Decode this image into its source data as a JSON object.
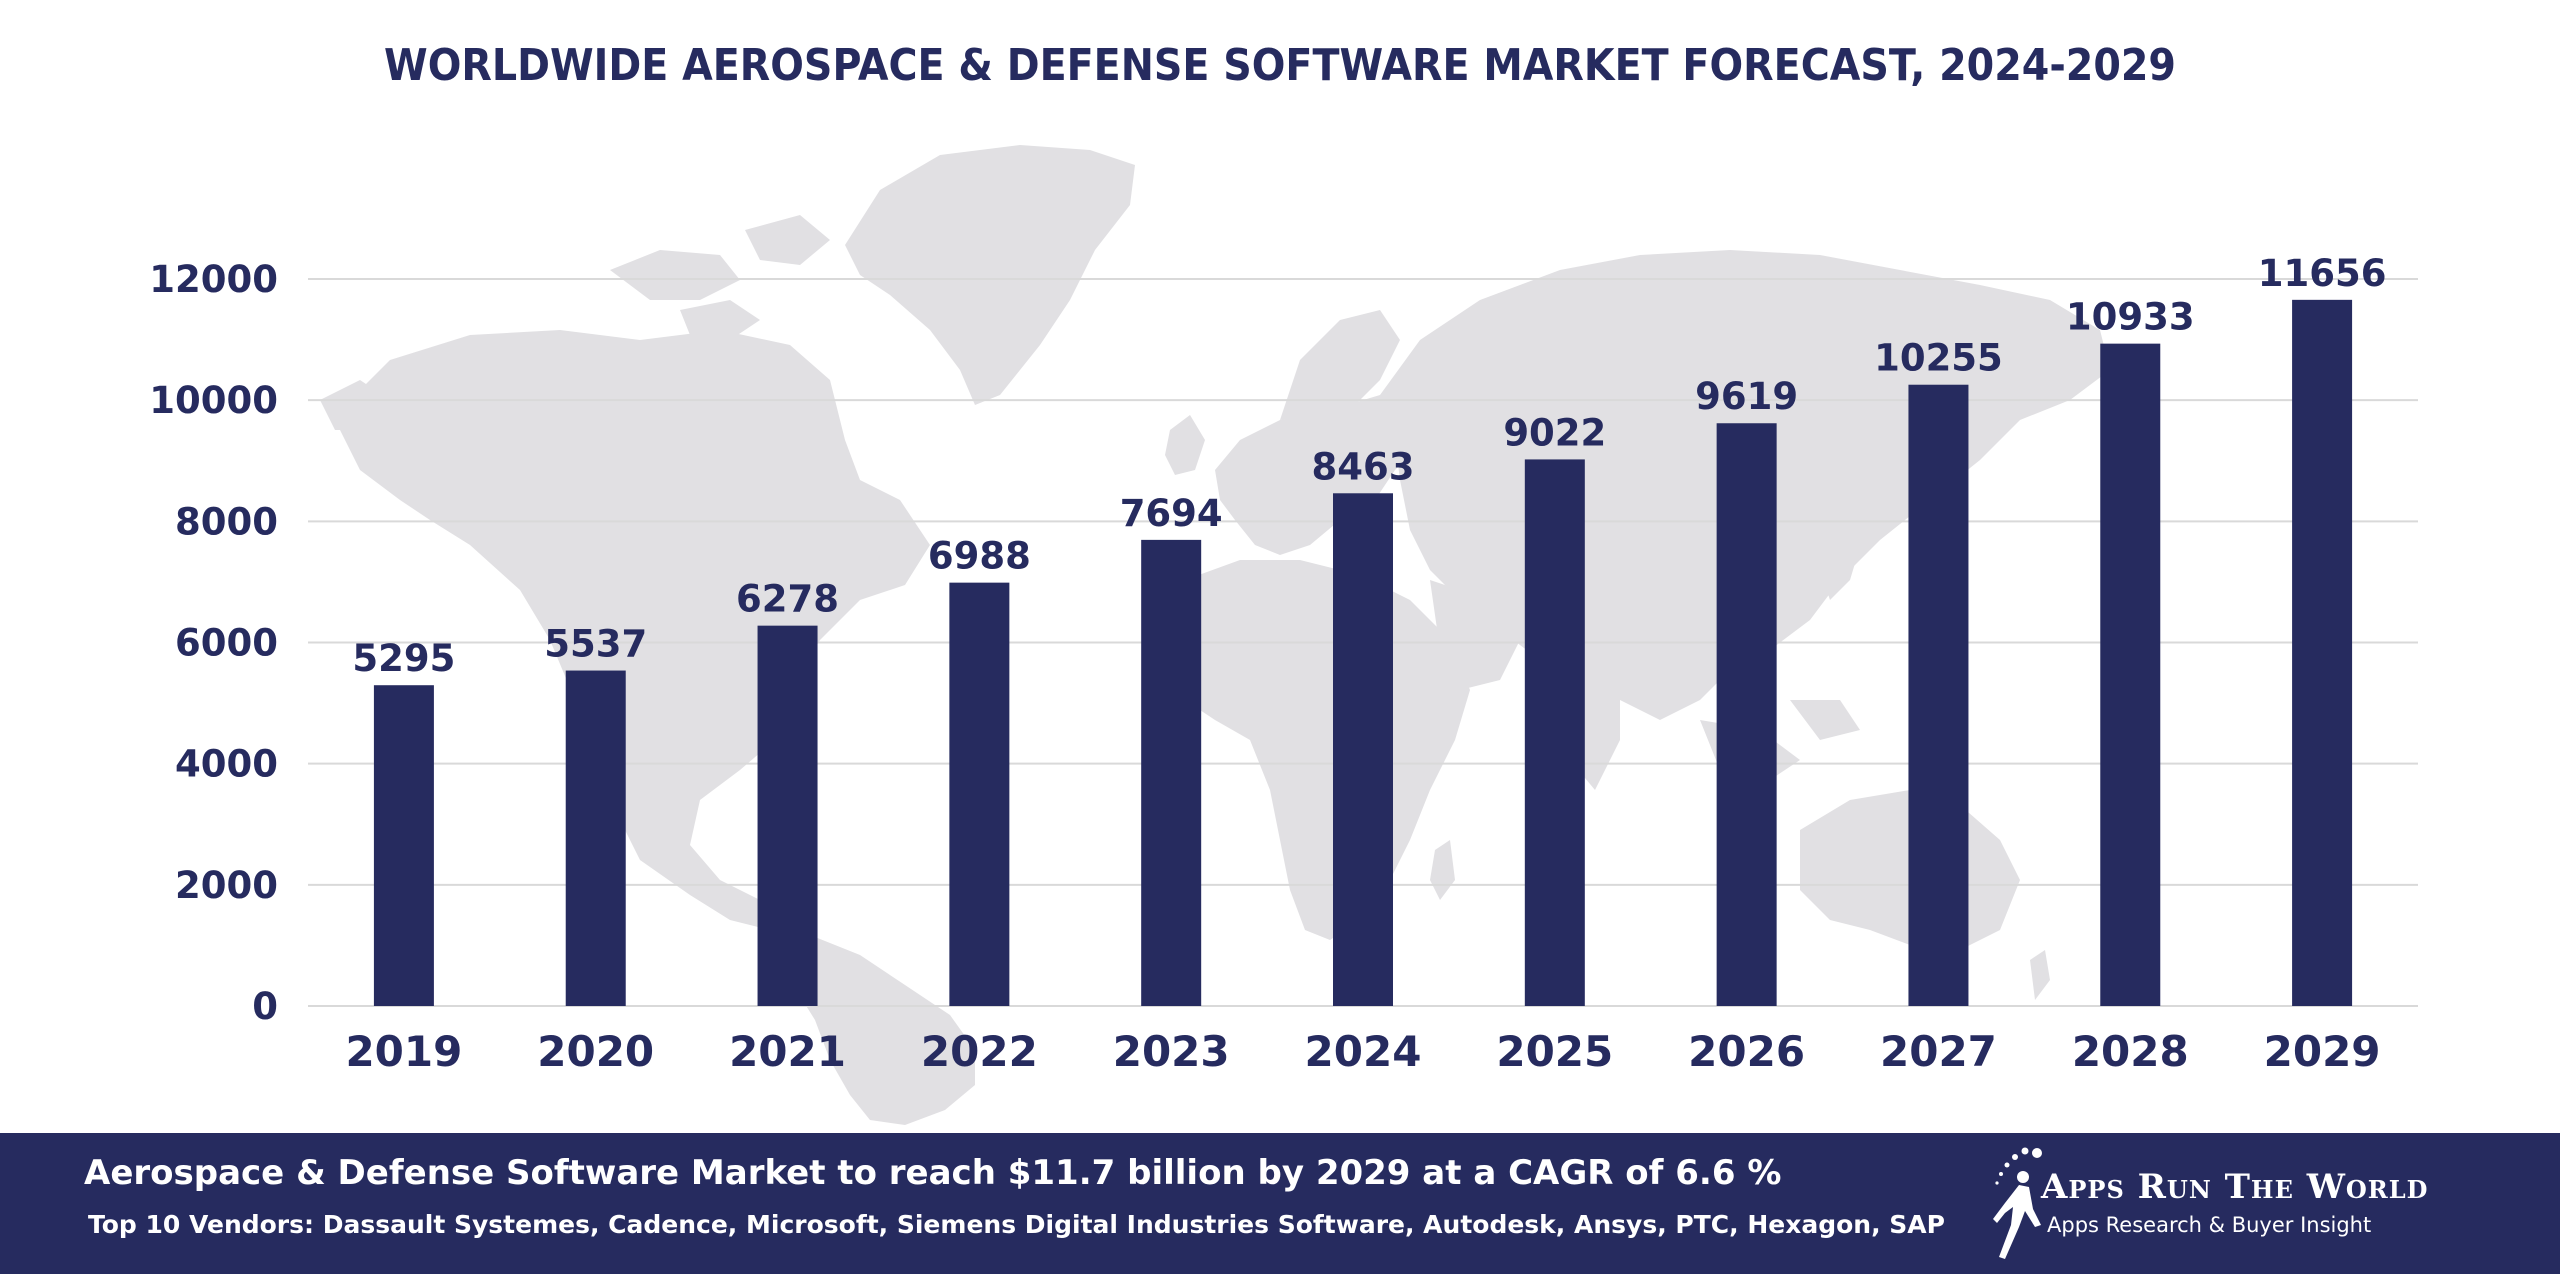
{
  "chart_data": {
    "type": "bar",
    "title": "WORLDWIDE AEROSPACE & DEFENSE SOFTWARE MARKET FORECAST, 2024-2029",
    "xlabel": "",
    "ylabel": "",
    "categories": [
      "2019",
      "2020",
      "2021",
      "2022",
      "2023",
      "2024",
      "2025",
      "2026",
      "2027",
      "2028",
      "2029"
    ],
    "values": [
      5295,
      5537,
      6278,
      6988,
      7694,
      8463,
      9022,
      9619,
      10255,
      10933,
      11656
    ],
    "yticks": [
      "0",
      "2000",
      "4000",
      "6000",
      "8000",
      "10000",
      "12000"
    ],
    "ylim": [
      0,
      12000
    ],
    "grid": true,
    "data_labels": true,
    "legend": "none",
    "bar_color": "#262B5F",
    "background": "world map silhouette"
  },
  "footer": {
    "headline": "Aerospace & Defense Software Market to reach $11.7 billion by 2029 at a CAGR of 6.6 %",
    "vendors": "Top 10 Vendors: Dassault Systemes, Cadence, Microsoft, Siemens Digital Industries Software, Autodesk, Ansys, PTC, Hexagon, SAP",
    "background_color": "#262B5F"
  },
  "logo": {
    "name": "Apps Run The World",
    "tagline": "Apps Research & Buyer Insight",
    "icon": "runner-icon"
  },
  "colors": {
    "accent": "#262B5F",
    "map": "#E1E0E3",
    "grid": "#D9D9D9"
  }
}
